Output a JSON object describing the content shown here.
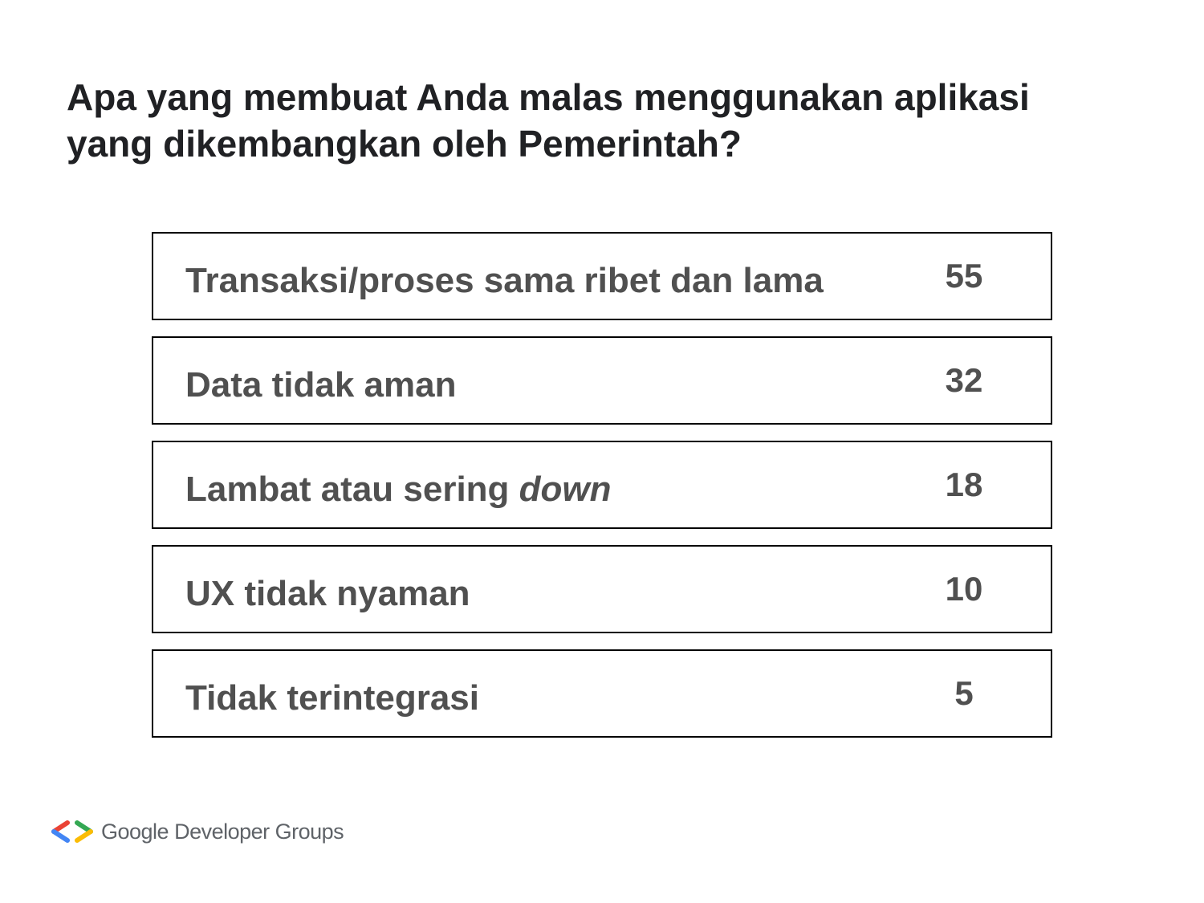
{
  "title": {
    "line1": "Apa yang membuat Anda malas menggunakan aplikasi",
    "line2": "yang dikembangkan oleh Pemerintah?"
  },
  "rows": [
    {
      "label": "Transaksi/proses sama ribet dan lama",
      "count": "55"
    },
    {
      "label": "Data tidak aman",
      "count": "32"
    },
    {
      "label_prefix": "Lambat atau sering ",
      "label_emphasis": "down",
      "count": "18"
    },
    {
      "label": "UX tidak nyaman",
      "count": "10"
    },
    {
      "label": "Tidak terintegrasi",
      "count": "5"
    }
  ],
  "footer": {
    "logo_icon": "gdg-chevrons-icon",
    "brand": "Google Developer Groups",
    "colors": {
      "red": "#ea4335",
      "blue": "#4285f4",
      "green": "#34a853",
      "yellow": "#fbbc04"
    }
  }
}
